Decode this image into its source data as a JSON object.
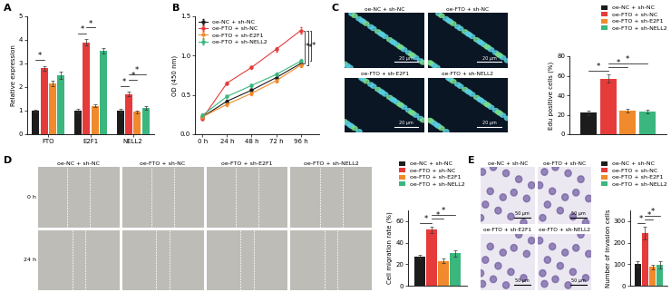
{
  "chart_data": [
    {
      "panel": "A",
      "type": "bar",
      "y_label": "Relative expression",
      "categories": [
        "FTO",
        "E2F1",
        "NELL2"
      ],
      "series": [
        {
          "name": "oe-NC + sh-NC",
          "color": "#1c1c1c",
          "values": [
            1.0,
            1.0,
            1.0
          ],
          "errors": [
            0.05,
            0.06,
            0.06
          ]
        },
        {
          "name": "oe-FTO + sh-NC",
          "color": "#e63b3b",
          "values": [
            2.8,
            3.9,
            1.7
          ],
          "errors": [
            0.1,
            0.12,
            0.1
          ]
        },
        {
          "name": "oe-FTO + sh-E2F1",
          "color": "#f08a2c",
          "values": [
            2.15,
            1.2,
            0.95
          ],
          "errors": [
            0.12,
            0.06,
            0.05
          ]
        },
        {
          "name": "oe-FTO + sh-NELL2",
          "color": "#3bb67e",
          "values": [
            2.5,
            3.55,
            1.1
          ],
          "errors": [
            0.15,
            0.12,
            0.08
          ]
        }
      ],
      "ylim": [
        0,
        5
      ],
      "yticks": [
        0,
        1,
        2,
        3,
        4,
        5
      ],
      "significance": [
        {
          "group": 0,
          "pair": [
            0,
            1
          ],
          "label": "*"
        },
        {
          "group": 1,
          "pair": [
            0,
            1
          ],
          "label": "*"
        },
        {
          "group": 1,
          "pair": [
            1,
            2
          ],
          "label": "*"
        },
        {
          "group": 2,
          "pair": [
            0,
            1
          ],
          "label": "*"
        },
        {
          "group": 2,
          "pair": [
            1,
            2
          ],
          "label": "*"
        },
        {
          "group": 2,
          "pair": [
            1,
            3
          ],
          "label": "*"
        }
      ]
    },
    {
      "panel": "B",
      "type": "line",
      "y_label": "OD (450 nm)",
      "categories": [
        "0 h",
        "24 h",
        "48 h",
        "72 h",
        "96 h"
      ],
      "series": [
        {
          "name": "oe-NC + sh-NC",
          "color": "#1c1c1c",
          "marker": "circle",
          "line_style": "solid",
          "values": [
            0.22,
            0.42,
            0.56,
            0.72,
            0.9
          ],
          "errors": [
            0.02,
            0.02,
            0.02,
            0.02,
            0.03
          ]
        },
        {
          "name": "oe-FTO + sh-NC",
          "color": "#e63b3b",
          "marker": "circle",
          "line_style": "solid",
          "values": [
            0.2,
            0.65,
            0.85,
            1.08,
            1.32
          ],
          "errors": [
            0.02,
            0.02,
            0.02,
            0.03,
            0.04
          ]
        },
        {
          "name": "oe-FTO + sh-E2F1",
          "color": "#f08a2c",
          "marker": "circle",
          "line_style": "solid",
          "values": [
            0.22,
            0.38,
            0.52,
            0.68,
            0.88
          ],
          "errors": [
            0.02,
            0.02,
            0.02,
            0.02,
            0.03
          ]
        },
        {
          "name": "oe-FTO + sh-NELL2",
          "color": "#3bb67e",
          "marker": "circle",
          "line_style": "solid",
          "values": [
            0.24,
            0.48,
            0.62,
            0.76,
            0.93
          ],
          "errors": [
            0.02,
            0.02,
            0.02,
            0.02,
            0.03
          ]
        }
      ],
      "ylim": [
        0,
        1.5
      ],
      "yticks": [
        {
          "value": 0,
          "label": "0.0"
        },
        {
          "value": 0.5,
          "label": "0.5"
        },
        {
          "value": 1.0,
          "label": "1.0"
        },
        {
          "value": 1.5,
          "label": "1.5"
        }
      ],
      "legend": "upper left",
      "significance": [
        {
          "pair": [
            1,
            0
          ],
          "label": "*"
        },
        {
          "pair": [
            1,
            2
          ],
          "label": "*"
        },
        {
          "pair": [
            1,
            3
          ],
          "label": "*"
        }
      ]
    },
    {
      "type": "bar",
      "y_label": "Edu positive cells (%)",
      "categories": [
        null
      ],
      "tick_labels": "y",
      "series": [
        {
          "name": "oe-NC + sh-NC",
          "color": "#1c1c1c",
          "values": [
            22
          ],
          "errors": [
            2
          ]
        },
        {
          "name": "oe-FTO + sh-NC",
          "color": "#e63b3b",
          "values": [
            57
          ],
          "errors": [
            4
          ]
        },
        {
          "name": "oe-FTO + sh-E2F1",
          "color": "#f08a2c",
          "values": [
            24
          ],
          "errors": [
            2
          ]
        },
        {
          "name": "oe-FTO + sh-NELL2",
          "color": "#3bb67e",
          "values": [
            23
          ],
          "errors": [
            2
          ]
        }
      ],
      "ylim": [
        0,
        80
      ],
      "yticks": [
        0,
        20,
        40,
        60,
        80
      ],
      "legend": "upper right",
      "significance": [
        {
          "group": 0,
          "pair": [
            0,
            1
          ],
          "label": "*"
        },
        {
          "group": 0,
          "pair": [
            1,
            2
          ],
          "label": "*"
        },
        {
          "group": 0,
          "pair": [
            1,
            3
          ],
          "label": "*"
        }
      ]
    },
    {
      "type": "bar",
      "y_label": "Cell migration rate (%)",
      "categories": [
        null
      ],
      "tick_labels": "y",
      "series": [
        {
          "name": "oe-NC + sh-NC",
          "color": "#1c1c1c",
          "values": [
            27
          ],
          "errors": [
            2
          ]
        },
        {
          "name": "oe-FTO + sh-NC",
          "color": "#e63b3b",
          "values": [
            52
          ],
          "errors": [
            3
          ]
        },
        {
          "name": "oe-FTO + sh-E2F1",
          "color": "#f08a2c",
          "values": [
            23
          ],
          "errors": [
            2
          ]
        },
        {
          "name": "oe-FTO + sh-NELL2",
          "color": "#3bb67e",
          "values": [
            30
          ],
          "errors": [
            3
          ]
        }
      ],
      "ylim": [
        0,
        70
      ],
      "yticks": [
        0,
        20,
        40,
        60
      ],
      "legend": "upper right",
      "significance": [
        {
          "group": 0,
          "pair": [
            0,
            1
          ],
          "label": "*"
        },
        {
          "group": 0,
          "pair": [
            1,
            2
          ],
          "label": "*"
        },
        {
          "group": 0,
          "pair": [
            1,
            3
          ],
          "label": "*"
        }
      ]
    },
    {
      "type": "bar",
      "y_label": "Number of invasion cells",
      "categories": [
        null
      ],
      "tick_labels": "y",
      "series": [
        {
          "name": "oe-NC + sh-NC",
          "color": "#1c1c1c",
          "values": [
            100
          ],
          "errors": [
            12
          ]
        },
        {
          "name": "oe-FTO + sh-NC",
          "color": "#e63b3b",
          "values": [
            245
          ],
          "errors": [
            28
          ]
        },
        {
          "name": "oe-FTO + sh-E2F1",
          "color": "#f08a2c",
          "values": [
            88
          ],
          "errors": [
            10
          ]
        },
        {
          "name": "oe-FTO + sh-NELL2",
          "color": "#3bb67e",
          "values": [
            97
          ],
          "errors": [
            15
          ]
        }
      ],
      "ylim": [
        0,
        350
      ],
      "yticks": [
        0,
        100,
        200,
        300
      ],
      "legend": "upper right",
      "significance": [
        {
          "group": 0,
          "pair": [
            0,
            1
          ],
          "label": "*"
        },
        {
          "group": 0,
          "pair": [
            1,
            2
          ],
          "label": "*"
        },
        {
          "group": 0,
          "pair": [
            1,
            3
          ],
          "label": "*"
        }
      ]
    }
  ],
  "image_panels": [
    {
      "panel": "C",
      "labels": [
        "oe-NC + sh-NC",
        "oe-FTO + sh-NC",
        "oe-FTO + sh-E2F1",
        "oe-FTO + sh-NELL2"
      ],
      "scale_bar": "20 μm"
    },
    {
      "panel": "D",
      "labels": [
        "oe-NC + sh-NC",
        "oe-FTO + sh-NC",
        "oe-FTO + sh-E2F1",
        "oe-FTO + sh-NELL2"
      ],
      "row_labels": [
        "0 h",
        "24 h"
      ]
    },
    {
      "panel": "E",
      "labels": [
        "oe-NC + sh-NC",
        "oe-FTO + sh-NC",
        "oe-FTO + sh-E2F1",
        "oe-FTO + sh-NELL2"
      ],
      "scale_bar": "50 μm"
    }
  ]
}
